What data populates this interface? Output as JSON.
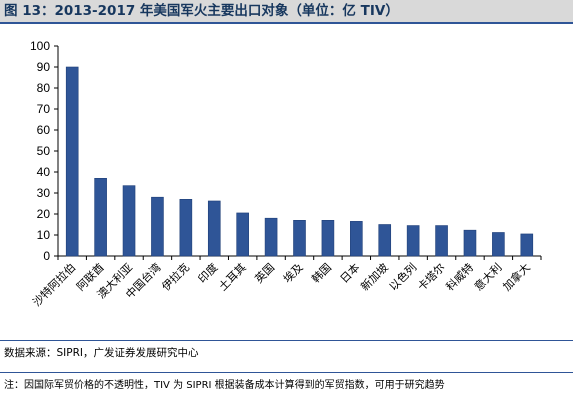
{
  "figure": {
    "title": "图 13：2013-2017 年美国军火主要出口对象（单位：亿 TIV）",
    "source": "数据来源：SIPRI，广发证券发展研究中心",
    "note": "注：因国际军贸价格的不透明性，TIV 为 SIPRI 根据装备成本计算得到的军贸指数，可用于研究趋势"
  },
  "colors": {
    "bar": "#2f5597",
    "bar_edge": "#1f3f78",
    "axis": "#000000",
    "title_bg": "#d9d9d9",
    "title_text": "#17375e",
    "rule": "#2f5597"
  },
  "chart_data": {
    "type": "bar",
    "categories": [
      "沙特阿拉伯",
      "阿联酋",
      "澳大利亚",
      "中国台湾",
      "伊拉克",
      "印度",
      "土耳其",
      "英国",
      "埃及",
      "韩国",
      "日本",
      "新加坡",
      "以色列",
      "卡塔尔",
      "科威特",
      "意大利",
      "加拿大"
    ],
    "values": [
      90,
      37,
      33.5,
      28,
      27,
      26.2,
      20.5,
      18,
      17,
      17,
      16.5,
      15,
      14.5,
      14.5,
      12.3,
      11.2,
      10.5
    ],
    "ylim": [
      0,
      100
    ],
    "yticks": [
      0,
      10,
      20,
      30,
      40,
      50,
      60,
      70,
      80,
      90,
      100
    ],
    "grid": false,
    "legend": "none"
  }
}
